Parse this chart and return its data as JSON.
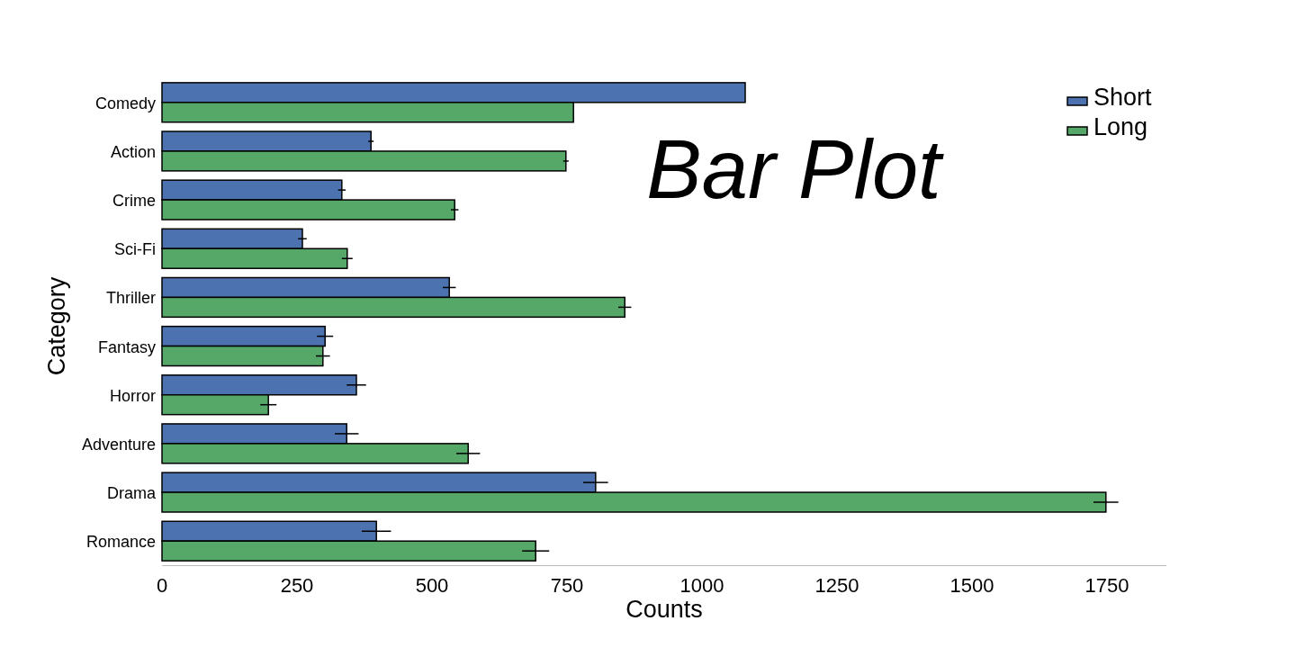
{
  "chart_data": {
    "type": "bar",
    "orientation": "horizontal",
    "title": "Bar Plot",
    "xlabel": "Counts",
    "ylabel": "Category",
    "categories": [
      "Comedy",
      "Action",
      "Crime",
      "Sci-Fi",
      "Thriller",
      "Fantasy",
      "Horror",
      "Adventure",
      "Drama",
      "Romance"
    ],
    "series": [
      {
        "name": "Short",
        "color": "#4c72b0",
        "values": [
          1080,
          387,
          333,
          260,
          532,
          302,
          360,
          342,
          803,
          397
        ],
        "errors": [
          null,
          5,
          7,
          8,
          12,
          15,
          18,
          22,
          23,
          27
        ]
      },
      {
        "name": "Long",
        "color": "#55a868",
        "values": [
          762,
          748,
          542,
          343,
          857,
          298,
          197,
          567,
          1748,
          692
        ],
        "errors": [
          null,
          5,
          7,
          10,
          12,
          13,
          15,
          22,
          23,
          25
        ]
      }
    ],
    "xlim": [
      0,
      1860
    ],
    "xticks": [
      0,
      250,
      500,
      750,
      1000,
      1250,
      1500,
      1750
    ],
    "grid": false,
    "legend": "top right"
  }
}
